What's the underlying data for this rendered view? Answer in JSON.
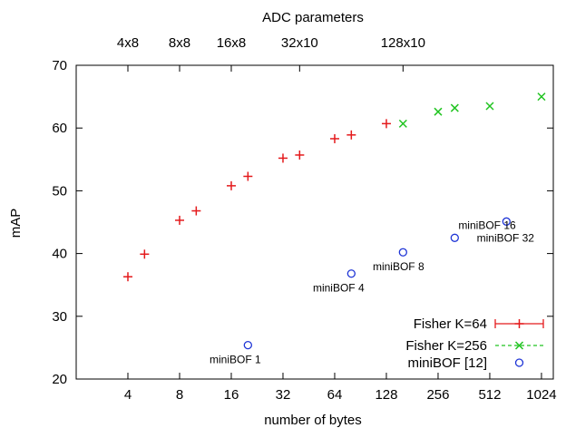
{
  "chart_data": {
    "type": "scatter",
    "title": "",
    "xlabel": "number of bytes",
    "ylabel": "mAP",
    "x2label": "ADC parameters",
    "x_scale": "log2",
    "xlim": [
      2,
      1200
    ],
    "ylim": [
      20,
      70
    ],
    "grid": false,
    "legend": "bottom-right",
    "xticks": [
      {
        "value": 4,
        "label": "4"
      },
      {
        "value": 8,
        "label": "8"
      },
      {
        "value": 16,
        "label": "16"
      },
      {
        "value": 32,
        "label": "32"
      },
      {
        "value": 64,
        "label": "64"
      },
      {
        "value": 128,
        "label": "128"
      },
      {
        "value": 256,
        "label": "256"
      },
      {
        "value": 512,
        "label": "512"
      },
      {
        "value": 1024,
        "label": "1024"
      }
    ],
    "x2ticks": [
      {
        "value": 4,
        "label": "4x8"
      },
      {
        "value": 8,
        "label": "8x8"
      },
      {
        "value": 16,
        "label": "16x8"
      },
      {
        "value": 40,
        "label": "32x10"
      },
      {
        "value": 160,
        "label": "128x10"
      }
    ],
    "yticks": [
      20,
      30,
      40,
      50,
      60,
      70
    ],
    "series": [
      {
        "name": "Fisher K=64",
        "marker": "plus",
        "color": "#e41a1c",
        "points": [
          {
            "x": 4,
            "y": 36.3
          },
          {
            "x": 5,
            "y": 39.9
          },
          {
            "x": 8,
            "y": 45.3
          },
          {
            "x": 10,
            "y": 46.8
          },
          {
            "x": 16,
            "y": 50.8
          },
          {
            "x": 20,
            "y": 52.3
          },
          {
            "x": 32,
            "y": 55.2
          },
          {
            "x": 40,
            "y": 55.7
          },
          {
            "x": 64,
            "y": 58.3
          },
          {
            "x": 80,
            "y": 58.9
          },
          {
            "x": 128,
            "y": 60.7
          }
        ]
      },
      {
        "name": "Fisher K=256",
        "marker": "cross",
        "color": "#21c421",
        "points": [
          {
            "x": 160,
            "y": 60.7
          },
          {
            "x": 256,
            "y": 62.6
          },
          {
            "x": 320,
            "y": 63.2
          },
          {
            "x": 512,
            "y": 63.5
          },
          {
            "x": 1024,
            "y": 65.0
          }
        ]
      },
      {
        "name": "miniBOF [12]",
        "marker": "circle",
        "color": "#1f35d6",
        "points": [
          {
            "x": 20,
            "y": 25.4,
            "label": "miniBOF 1"
          },
          {
            "x": 80,
            "y": 36.8,
            "label": "miniBOF 4"
          },
          {
            "x": 160,
            "y": 40.2,
            "label": "miniBOF 8"
          },
          {
            "x": 320,
            "y": 42.5,
            "label": "miniBOF 16"
          },
          {
            "x": 640,
            "y": 45.1,
            "label": "miniBOF 32"
          }
        ]
      }
    ]
  }
}
